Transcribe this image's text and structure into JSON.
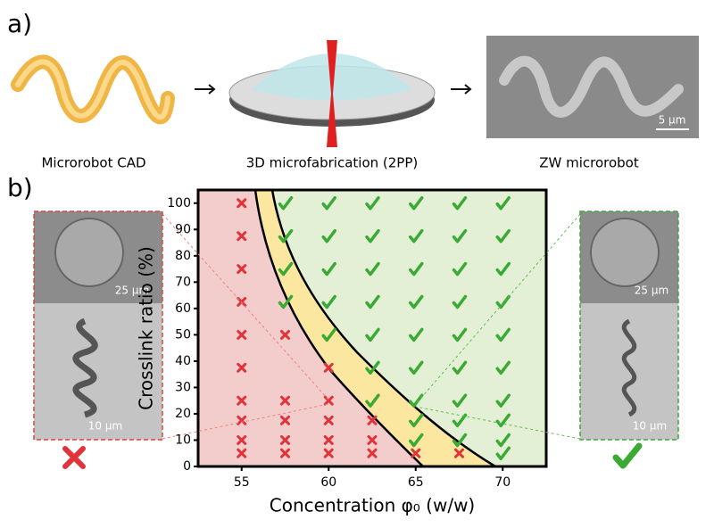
{
  "panel_a": {
    "label": "a)",
    "captions": [
      "Microrobot CAD",
      "3D microfabrication (2PP)",
      "ZW microrobot"
    ],
    "scale_bar": "5 µm"
  },
  "panel_b": {
    "label": "b)",
    "left_scale_bars": [
      "25 µm",
      "10 µm"
    ],
    "right_scale_bars": [
      "25 µm",
      "10 µm"
    ]
  },
  "chart_data": {
    "type": "scatter",
    "xlabel": "Concentration φ₀ (w/w)",
    "ylabel": "Crosslink ratio (%)",
    "xlim": [
      52.5,
      72.5
    ],
    "xticks": [
      55,
      60,
      65,
      70
    ],
    "ylim": [
      0,
      105
    ],
    "yticks": [
      0,
      10,
      20,
      30,
      40,
      50,
      60,
      70,
      80,
      90,
      100
    ],
    "series": [
      {
        "marker": "cross",
        "color": "#e0343a",
        "x": [
          55,
          55,
          55,
          55,
          55,
          55,
          55,
          55,
          55,
          55,
          57.5,
          57.5,
          57.5,
          57.5,
          57.5,
          60,
          60,
          60,
          60,
          60,
          62.5,
          62.5,
          62.5,
          65,
          67.5
        ],
        "values": [
          5,
          10,
          17.5,
          25,
          37.5,
          50,
          62.5,
          75,
          87.5,
          100,
          5,
          10,
          17.5,
          25,
          50,
          5,
          10,
          17.5,
          25,
          37.5,
          5,
          10,
          17.5,
          5,
          5
        ]
      },
      {
        "marker": "check",
        "color": "#3aaa35",
        "x": [
          57.5,
          57.5,
          57.5,
          57.5,
          60,
          60,
          60,
          60,
          60,
          62.5,
          62.5,
          62.5,
          62.5,
          62.5,
          62.5,
          62.5,
          65,
          65,
          65,
          65,
          65,
          65,
          65,
          65,
          65,
          67.5,
          67.5,
          67.5,
          67.5,
          67.5,
          67.5,
          67.5,
          67.5,
          67.5,
          70,
          70,
          70,
          70,
          70,
          70,
          70,
          70,
          70,
          70
        ],
        "values": [
          62.5,
          75,
          87.5,
          100,
          50,
          62.5,
          75,
          87.5,
          100,
          25,
          37.5,
          50,
          62.5,
          75,
          87.5,
          100,
          10,
          17.5,
          25,
          37.5,
          50,
          62.5,
          75,
          87.5,
          100,
          10,
          17.5,
          25,
          37.5,
          50,
          62.5,
          75,
          87.5,
          100,
          5,
          10,
          17.5,
          25,
          37.5,
          50,
          62.5,
          75,
          87.5,
          100
        ]
      }
    ]
  }
}
